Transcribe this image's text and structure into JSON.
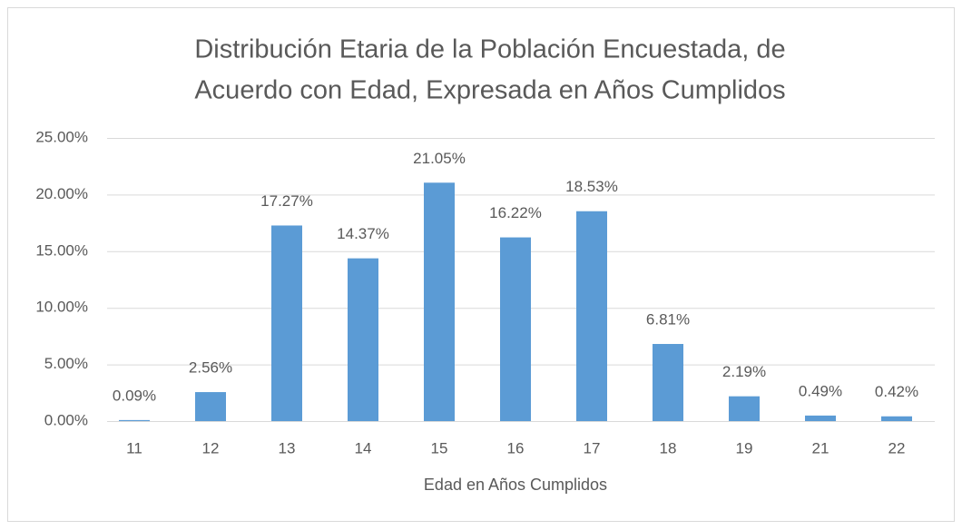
{
  "chart_data": {
    "type": "bar",
    "title": [
      "Distribución Etaria de la Población Encuestada, de",
      "Acuerdo con Edad, Expresada en Años Cumplidos"
    ],
    "x_label": "Edad en Años Cumplidos",
    "categories": [
      "11",
      "12",
      "13",
      "14",
      "15",
      "16",
      "17",
      "18",
      "19",
      "21",
      "22"
    ],
    "values": [
      0.09,
      2.56,
      17.27,
      14.37,
      21.05,
      16.22,
      18.53,
      6.81,
      2.19,
      0.49,
      0.42
    ],
    "value_labels": [
      "0.09%",
      "2.56%",
      "17.27%",
      "14.37%",
      "21.05%",
      "16.22%",
      "18.53%",
      "6.81%",
      "2.19%",
      "0.49%",
      "0.42%"
    ],
    "color": "#5b9bd5",
    "ylim": [
      0,
      25
    ],
    "yticks": [
      {
        "value": 0,
        "label": "0.00%"
      },
      {
        "value": 5,
        "label": "5.00%"
      },
      {
        "value": 10,
        "label": "10.00%"
      },
      {
        "value": 15,
        "label": "15.00%"
      },
      {
        "value": 20,
        "label": "20.00%"
      },
      {
        "value": 25,
        "label": "25.00%"
      }
    ],
    "grid": true
  }
}
